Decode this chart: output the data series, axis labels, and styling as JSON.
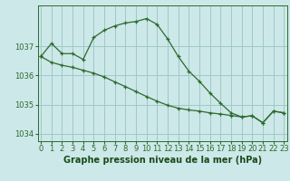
{
  "line1_x": [
    0,
    1,
    2,
    3,
    4,
    5,
    6,
    7,
    8,
    9,
    10,
    11,
    12,
    13,
    14,
    15,
    16,
    17,
    18,
    19,
    20,
    21,
    22,
    23
  ],
  "line1_y": [
    1036.65,
    1037.1,
    1036.75,
    1036.75,
    1036.55,
    1037.3,
    1037.55,
    1037.7,
    1037.8,
    1037.85,
    1037.95,
    1037.75,
    1037.25,
    1036.65,
    1036.15,
    1035.8,
    1035.4,
    1035.05,
    1034.72,
    1034.58,
    1034.62,
    1034.38,
    1034.78,
    1034.72
  ],
  "line2_x": [
    0,
    1,
    2,
    3,
    4,
    5,
    6,
    7,
    8,
    9,
    10,
    11,
    12,
    13,
    14,
    15,
    16,
    17,
    18,
    19,
    20,
    21,
    22,
    23
  ],
  "line2_y": [
    1036.65,
    1036.45,
    1036.35,
    1036.28,
    1036.18,
    1036.08,
    1035.95,
    1035.78,
    1035.62,
    1035.45,
    1035.28,
    1035.12,
    1034.98,
    1034.88,
    1034.82,
    1034.78,
    1034.72,
    1034.68,
    1034.63,
    1034.58,
    1034.62,
    1034.38,
    1034.78,
    1034.72
  ],
  "line_color": "#2d6a2d",
  "marker": "+",
  "bg_color": "#cce8e8",
  "grid_color": "#a0c8c8",
  "yticks": [
    1034,
    1035,
    1036,
    1037
  ],
  "xticks": [
    0,
    1,
    2,
    3,
    4,
    5,
    6,
    7,
    8,
    9,
    10,
    11,
    12,
    13,
    14,
    15,
    16,
    17,
    18,
    19,
    20,
    21,
    22,
    23
  ],
  "xlim": [
    -0.3,
    23.3
  ],
  "ylim": [
    1033.75,
    1038.4
  ],
  "xlabel": "Graphe pression niveau de la mer (hPa)",
  "xlabel_color": "#1a4a1a",
  "tick_color": "#2d6a2d",
  "axis_color": "#2d6a2d",
  "fontsize_xlabel": 7,
  "fontsize_tick": 6,
  "linewidth": 0.9,
  "markersize": 3.5,
  "markeredgewidth": 0.9
}
